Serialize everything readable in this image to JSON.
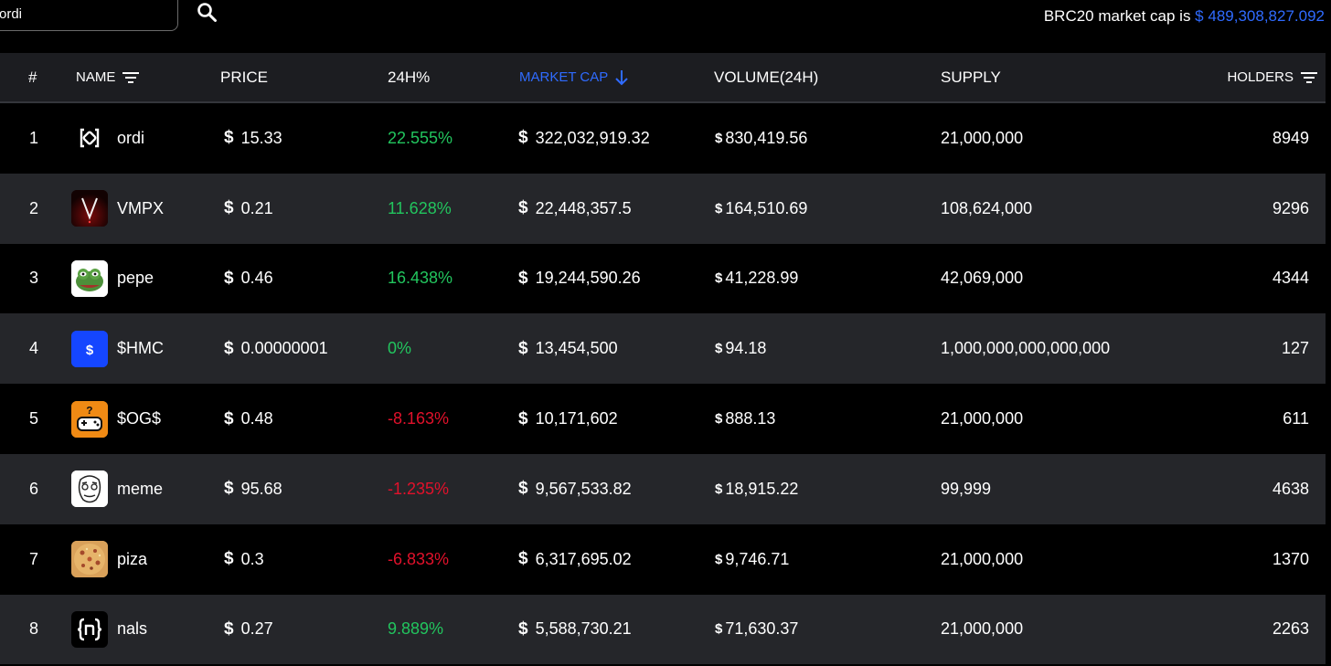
{
  "search": {
    "value": "ordi"
  },
  "summary": {
    "label": "BRC20 market cap is ",
    "currency": "$",
    "value": "489,308,827.092"
  },
  "colors": {
    "accent": "#2f6bff",
    "positive": "#22c55e",
    "negative": "#e1112b",
    "row_alt": "#25262a",
    "header_bg": "#1c1d21"
  },
  "columns": {
    "rank": "#",
    "name": "NAME",
    "price": "PRICE",
    "change": "24H%",
    "market_cap": "MARKET CAP",
    "volume": "VOLUME(24H)",
    "supply": "SUPPLY",
    "holders": "HOLDERS"
  },
  "sort": {
    "column": "market_cap",
    "direction": "descending"
  },
  "rows": [
    {
      "rank": "1",
      "name": "ordi",
      "icon": "ordi-logo-icon",
      "price": "15.33",
      "change": "22.555%",
      "trend": "pos",
      "market_cap": "322,032,919.32",
      "volume": "830,419.56",
      "supply": "21,000,000",
      "holders": "8949"
    },
    {
      "rank": "2",
      "name": "VMPX",
      "icon": "vmpx-logo-icon",
      "price": "0.21",
      "change": "11.628%",
      "trend": "pos",
      "market_cap": "22,448,357.5",
      "volume": "164,510.69",
      "supply": "108,624,000",
      "holders": "9296"
    },
    {
      "rank": "3",
      "name": "pepe",
      "icon": "pepe-frog-icon",
      "price": "0.46",
      "change": "16.438%",
      "trend": "pos",
      "market_cap": "19,244,590.26",
      "volume": "41,228.99",
      "supply": "42,069,000",
      "holders": "4344"
    },
    {
      "rank": "4",
      "name": "$HMC",
      "icon": "hmc-dollar-icon",
      "price": "0.00000001",
      "change": "0%",
      "trend": "zero",
      "market_cap": "13,454,500",
      "volume": "94.18",
      "supply": "1,000,000,000,000,000",
      "holders": "127"
    },
    {
      "rank": "5",
      "name": "$OG$",
      "icon": "og-gamepad-icon",
      "price": "0.48",
      "change": "-8.163%",
      "trend": "neg",
      "market_cap": "10,171,602",
      "volume": "888.13",
      "supply": "21,000,000",
      "holders": "611"
    },
    {
      "rank": "6",
      "name": "meme",
      "icon": "meme-face-icon",
      "price": "95.68",
      "change": "-1.235%",
      "trend": "neg",
      "market_cap": "9,567,533.82",
      "volume": "18,915.22",
      "supply": "99,999",
      "holders": "4638"
    },
    {
      "rank": "7",
      "name": "piza",
      "icon": "pizza-icon",
      "price": "0.3",
      "change": "-6.833%",
      "trend": "neg",
      "market_cap": "6,317,695.02",
      "volume": "9,746.71",
      "supply": "21,000,000",
      "holders": "1370"
    },
    {
      "rank": "8",
      "name": "nals",
      "icon": "nals-logo-icon",
      "price": "0.27",
      "change": "9.889%",
      "trend": "pos",
      "market_cap": "5,588,730.21",
      "volume": "71,630.37",
      "supply": "21,000,000",
      "holders": "2263"
    }
  ]
}
